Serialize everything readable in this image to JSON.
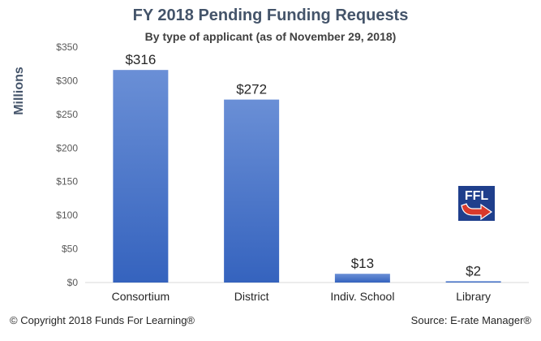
{
  "chart_data": {
    "type": "bar",
    "title": "FY 2018 Pending Funding Requests",
    "subtitle": "By type of applicant  (as of November 29, 2018)",
    "ylabel": "Millions",
    "xlabel": "",
    "categories": [
      "Consortium",
      "District",
      "Indiv. School",
      "Library"
    ],
    "values": [
      316,
      272,
      13,
      2
    ],
    "data_labels": [
      "$316",
      "$272",
      "$13",
      "$2"
    ],
    "ylim": [
      0,
      350
    ],
    "yticks": [
      0,
      50,
      100,
      150,
      200,
      250,
      300,
      350
    ],
    "ytick_labels": [
      "$0",
      "$50",
      "$100",
      "$150",
      "$200",
      "$250",
      "$300",
      "$350"
    ],
    "grid": false,
    "bar_color": "#4472c4"
  },
  "footer": {
    "copyright": "© Copyright 2018 Funds For Learning®",
    "source": "Source: E-rate Manager®"
  },
  "logo": {
    "text": "FFL",
    "icon": "ffl-logo-arrow-icon"
  }
}
